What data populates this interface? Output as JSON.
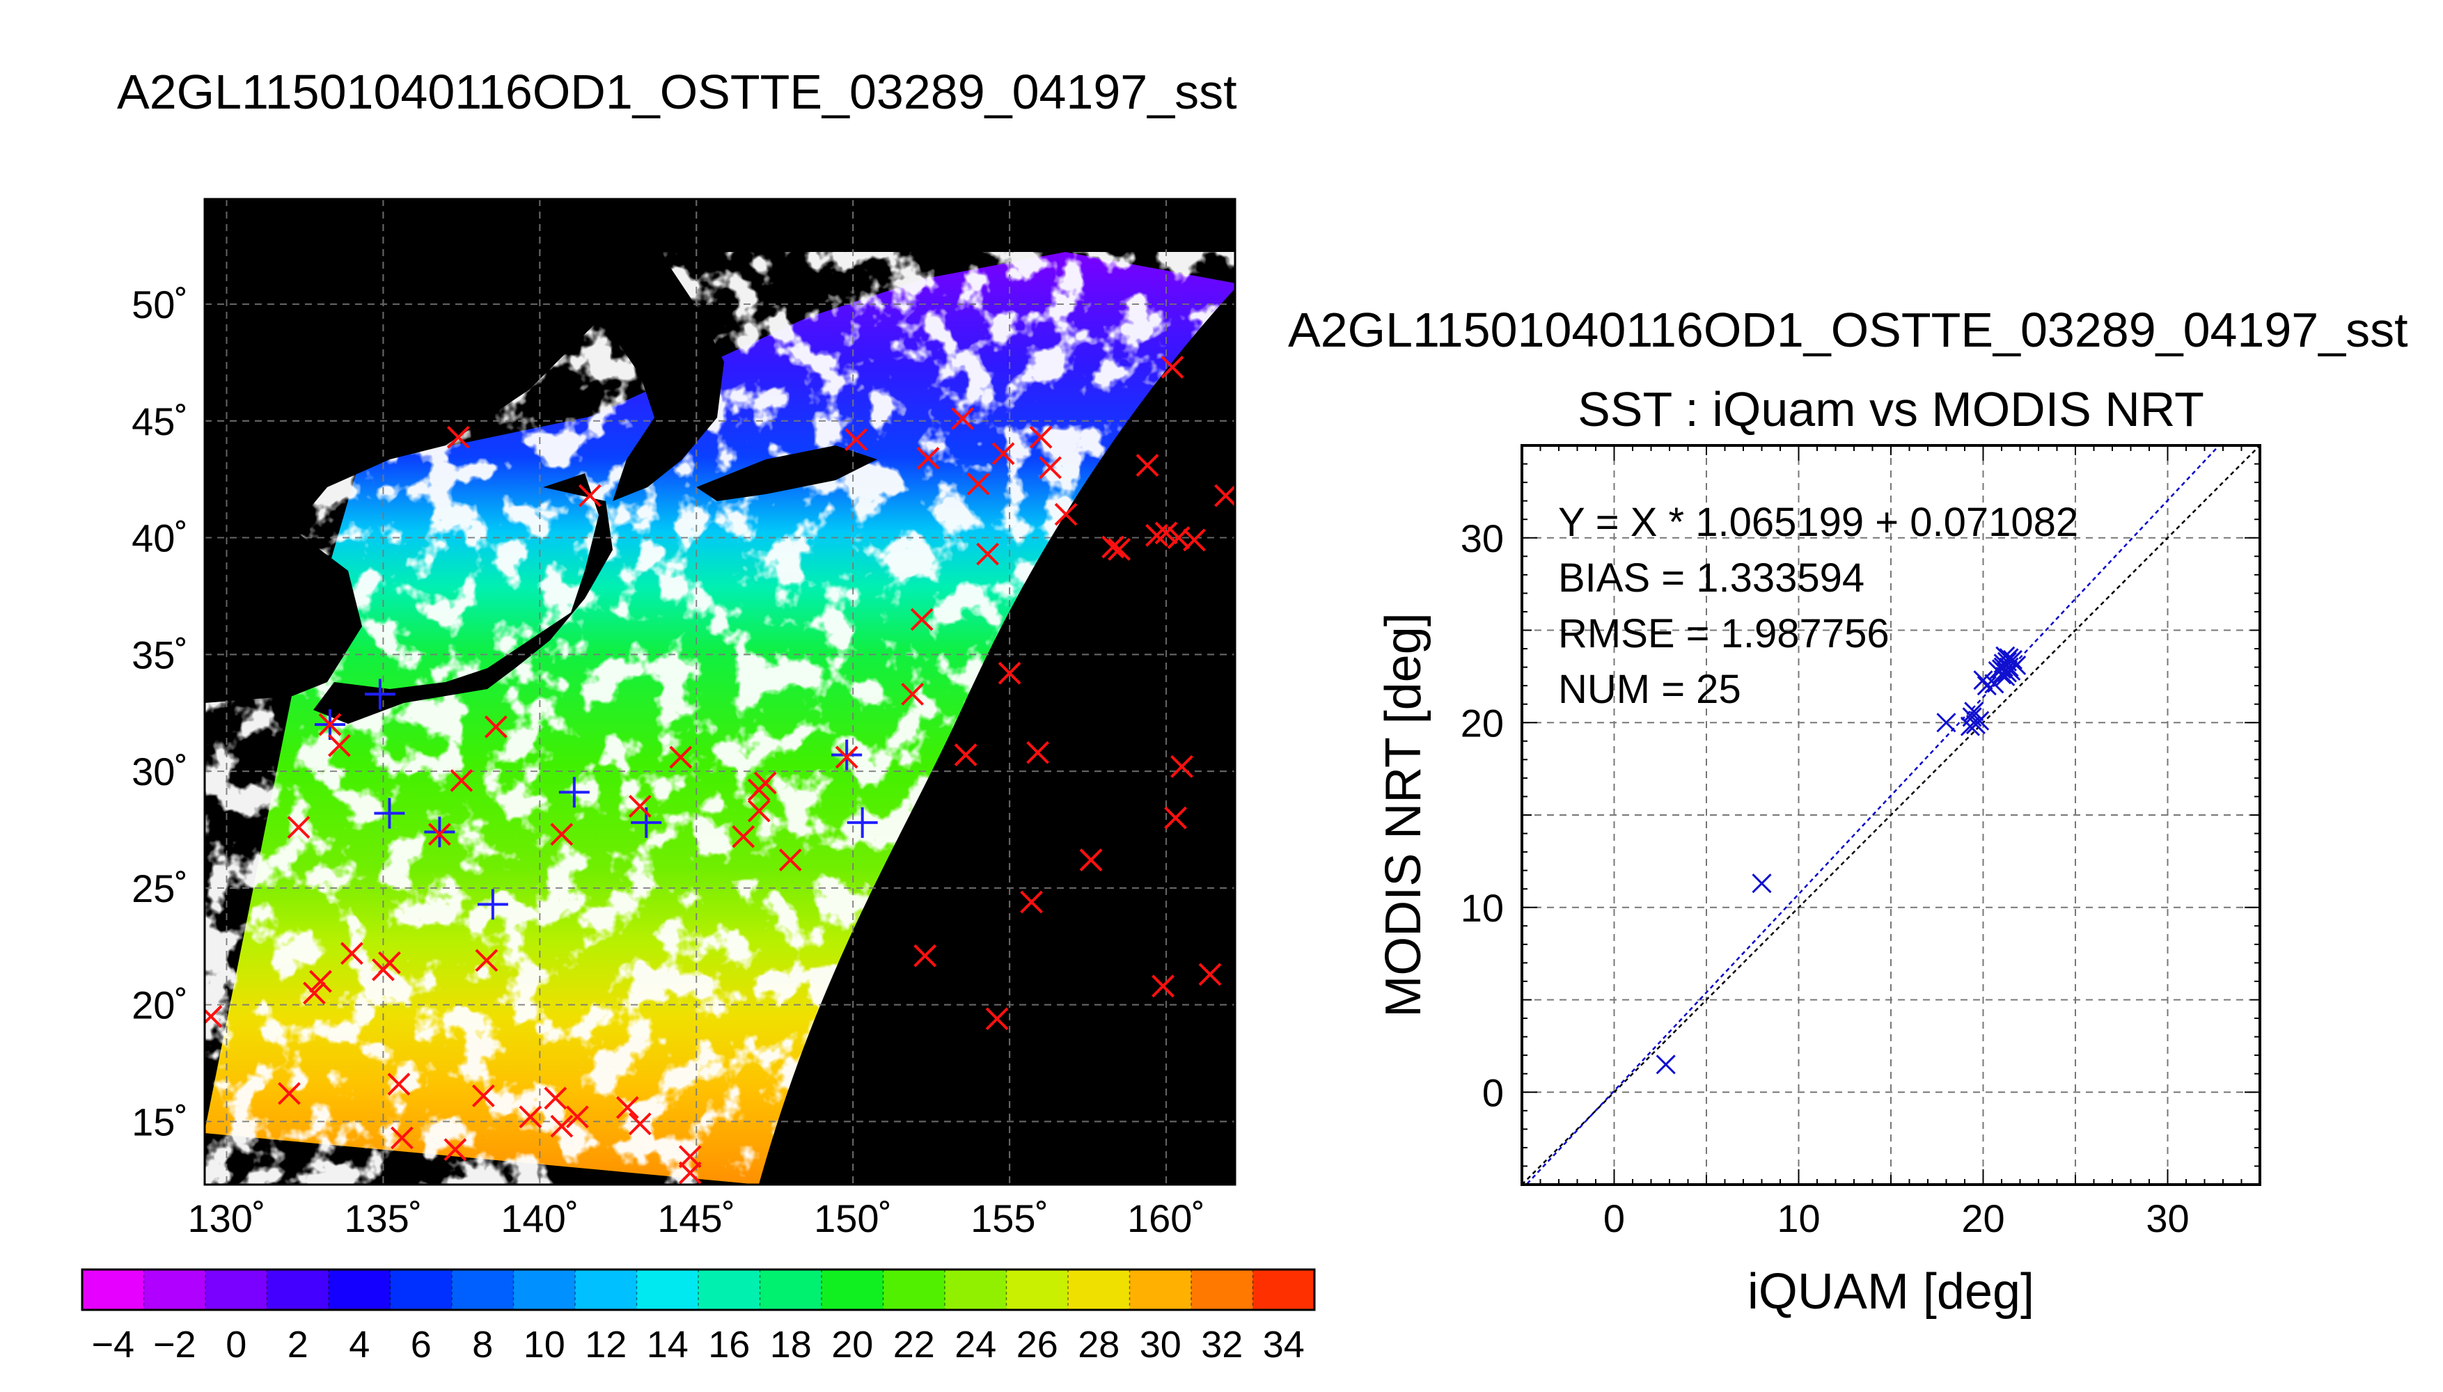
{
  "main_title": "A2GL11501040116OD1_OSTTE_03289_04197_sst",
  "map": {
    "lon_ticks": [
      "130˚",
      "135˚",
      "140˚",
      "145˚",
      "150˚",
      "155˚",
      "160˚"
    ],
    "lat_ticks": [
      "15˚",
      "20˚",
      "25˚",
      "30˚",
      "35˚",
      "40˚",
      "45˚",
      "50˚"
    ],
    "xlim": [
      129.3,
      162.2
    ],
    "ylim": [
      12.3,
      54.5
    ],
    "colorbar_ticks": [
      "−4",
      "−2",
      "0",
      "2",
      "4",
      "6",
      "8",
      "10",
      "12",
      "14",
      "16",
      "18",
      "20",
      "22",
      "24",
      "26",
      "28",
      "30",
      "32",
      "34"
    ],
    "colorbar_range": [
      -5,
      35
    ],
    "colorbar_colors": [
      "#e600ff",
      "#b000ff",
      "#7a00ff",
      "#4400ff",
      "#1400ff",
      "#0030ff",
      "#0060ff",
      "#0090ff",
      "#00c0ff",
      "#00e8f0",
      "#00f0b0",
      "#00f070",
      "#10f020",
      "#50f000",
      "#90f000",
      "#c8f000",
      "#f0e000",
      "#ffb000",
      "#ff7800",
      "#ff3000"
    ],
    "colors": {
      "land": "#000000",
      "no_data": "#000000",
      "cloud": "#ffffff",
      "matched": "#2020ff",
      "unmatched": "#ff1010"
    },
    "points_red": [
      [
        129.5,
        19.5
      ],
      [
        132.3,
        27.6
      ],
      [
        132.0,
        16.2
      ],
      [
        132.8,
        20.5
      ],
      [
        133.0,
        21.0
      ],
      [
        133.3,
        32.0
      ],
      [
        133.6,
        31.1
      ],
      [
        134.0,
        22.2
      ],
      [
        135.0,
        21.5
      ],
      [
        135.2,
        21.8
      ],
      [
        135.5,
        16.6
      ],
      [
        135.6,
        14.3
      ],
      [
        136.8,
        27.3
      ],
      [
        137.5,
        29.6
      ],
      [
        137.3,
        13.8
      ],
      [
        138.2,
        16.1
      ],
      [
        138.3,
        21.9
      ],
      [
        138.6,
        31.9
      ],
      [
        137.4,
        44.3
      ],
      [
        141.6,
        41.8
      ],
      [
        139.7,
        15.2
      ],
      [
        140.5,
        16.0
      ],
      [
        140.7,
        14.8
      ],
      [
        141.2,
        15.2
      ],
      [
        142.8,
        15.6
      ],
      [
        143.2,
        14.9
      ],
      [
        140.7,
        27.3
      ],
      [
        143.2,
        28.5
      ],
      [
        144.5,
        30.6
      ],
      [
        144.8,
        13.5
      ],
      [
        144.8,
        12.8
      ],
      [
        146.5,
        27.2
      ],
      [
        147.0,
        28.3
      ],
      [
        147.0,
        29.2
      ],
      [
        147.2,
        29.5
      ],
      [
        148.0,
        26.2
      ],
      [
        149.8,
        30.6
      ],
      [
        150.1,
        44.2
      ],
      [
        151.9,
        33.3
      ],
      [
        152.2,
        36.5
      ],
      [
        152.4,
        43.4
      ],
      [
        152.3,
        22.1
      ],
      [
        153.5,
        45.1
      ],
      [
        153.6,
        30.7
      ],
      [
        154.0,
        42.3
      ],
      [
        154.3,
        39.3
      ],
      [
        154.6,
        19.4
      ],
      [
        154.8,
        43.6
      ],
      [
        155.0,
        34.2
      ],
      [
        155.7,
        24.4
      ],
      [
        155.9,
        30.8
      ],
      [
        156.0,
        44.3
      ],
      [
        156.3,
        43.0
      ],
      [
        156.8,
        41.0
      ],
      [
        157.6,
        26.2
      ],
      [
        158.3,
        39.6
      ],
      [
        158.5,
        39.5
      ],
      [
        159.4,
        43.1
      ],
      [
        159.7,
        40.1
      ],
      [
        159.9,
        20.8
      ],
      [
        160.0,
        40.2
      ],
      [
        160.4,
        40.0
      ],
      [
        160.2,
        47.3
      ],
      [
        160.3,
        28.0
      ],
      [
        160.5,
        30.2
      ],
      [
        160.9,
        39.9
      ],
      [
        161.4,
        21.3
      ],
      [
        161.9,
        41.8
      ]
    ],
    "points_blue": [
      [
        133.3,
        32.0
      ],
      [
        134.9,
        33.3
      ],
      [
        135.2,
        28.2
      ],
      [
        136.8,
        27.4
      ],
      [
        138.5,
        24.3
      ],
      [
        141.1,
        29.1
      ],
      [
        143.4,
        27.8
      ],
      [
        149.8,
        30.7
      ],
      [
        150.3,
        27.8
      ]
    ]
  },
  "scatter": {
    "file_title": "A2GL11501040116OD1_OSTTE_03289_04197_sst",
    "title": "SST : iQuam vs MODIS NRT",
    "xlabel": "iQUAM [deg]",
    "ylabel": "MODIS NRT [deg]",
    "xticks": [
      "0",
      "10",
      "20",
      "30"
    ],
    "yticks": [
      "0",
      "10",
      "20",
      "30"
    ],
    "stats": [
      "Y = X * 1.065199 + 0.071082",
      "BIAS = 1.333594",
      "RMSE = 1.987756",
      "NUM = 25"
    ],
    "fit": {
      "slope": 1.065199,
      "intercept": 0.071082
    },
    "colors": {
      "points": "#1010d0",
      "fit_line": "#0000cc",
      "one_to_one": "#000000",
      "file_title": "#808080"
    }
  },
  "chart_data": [
    {
      "type": "scatter",
      "title": "SST : iQuam vs MODIS NRT",
      "xlabel": "iQUAM [deg]",
      "ylabel": "MODIS NRT [deg]",
      "xlim": [
        -5,
        35
      ],
      "ylim": [
        -5,
        35
      ],
      "grid": true,
      "x": [
        2.8,
        8.0,
        18.0,
        19.3,
        19.4,
        19.5,
        19.6,
        19.8,
        20.0,
        20.2,
        20.6,
        20.8,
        21.0,
        21.1,
        21.2,
        21.3,
        21.4,
        21.5,
        21.6,
        21.2,
        21.0,
        21.4,
        21.8,
        21.3,
        21.1
      ],
      "y": [
        1.5,
        11.3,
        20.0,
        19.8,
        20.3,
        20.6,
        19.9,
        20.1,
        22.3,
        22.0,
        22.1,
        22.8,
        22.6,
        23.2,
        23.6,
        23.3,
        23.0,
        22.8,
        23.4,
        22.5,
        22.9,
        23.5,
        23.1,
        22.7,
        23.0
      ],
      "fit_line": {
        "slope": 1.065199,
        "intercept": 0.071082
      },
      "reference_line": "y = x",
      "stats": {
        "bias": 1.333594,
        "rmse": 1.987756,
        "num": 25
      }
    },
    {
      "type": "heatmap",
      "title": "A2GL11501040116OD1_OSTTE_03289_04197_sst",
      "xlabel": "",
      "ylabel": "",
      "xlim": [
        129.3,
        162.2
      ],
      "ylim": [
        12.3,
        54.5
      ],
      "colorbar_range": [
        -5,
        35
      ],
      "grid": true
    }
  ]
}
